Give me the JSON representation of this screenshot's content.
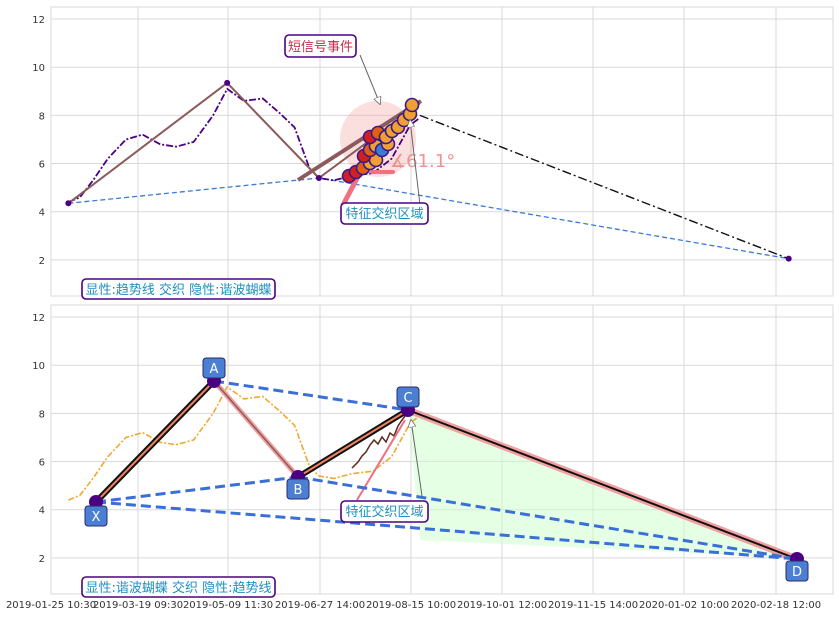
{
  "colors": {
    "grid": "#d9d9d9",
    "purple": "#4b0082",
    "brown": "#8b5a5a",
    "blue_dash": "#3a7bd5",
    "black_dashdot": "#111111",
    "orange": "#f0a830",
    "pink": "#f08080",
    "label_blue": "#4a7fd4",
    "green_fill": "#ccffcc",
    "short_signal_text": "#c0304a",
    "cyan_text": "#1f8fbf"
  },
  "chart_data": [
    {
      "type": "line",
      "panel": "top",
      "ylim": [
        0.5,
        12.5
      ],
      "yticks": [
        2,
        4,
        6,
        8,
        10,
        12
      ],
      "series": [
        {
          "role": "price",
          "style": "purple dash-dot",
          "x": [
            "2019-02-05",
            "2019-02-12",
            "2019-02-20",
            "2019-03-01",
            "2019-03-12",
            "2019-03-22",
            "2019-04-01",
            "2019-04-10",
            "2019-04-20",
            "2019-05-01",
            "2019-05-09",
            "2019-05-18",
            "2019-05-28",
            "2019-06-06",
            "2019-06-14",
            "2019-06-22",
            "2019-06-27",
            "2019-07-05",
            "2019-07-15",
            "2019-07-26",
            "2019-08-05",
            "2019-08-15",
            "2019-08-20"
          ],
          "y": [
            4.4,
            4.6,
            5.3,
            6.2,
            7.0,
            7.2,
            6.8,
            6.7,
            6.9,
            8.0,
            9.1,
            8.6,
            8.7,
            8.1,
            7.5,
            5.8,
            5.4,
            5.3,
            5.5,
            5.6,
            6.2,
            7.6,
            7.9
          ]
        },
        {
          "role": "harmonic-butterfly",
          "style": "brown solid",
          "x": [
            "2019-02-05",
            "2019-05-09",
            "2019-06-27",
            "2019-08-20"
          ],
          "y": [
            4.35,
            9.35,
            5.4,
            8.5
          ]
        },
        {
          "role": "trendline-lower",
          "style": "blue dashed",
          "x": [
            "2019-02-05",
            "2019-06-27",
            "2020-02-25"
          ],
          "y": [
            4.35,
            5.4,
            2.05
          ]
        },
        {
          "role": "projection",
          "style": "black dash-dot",
          "x": [
            "2019-08-20",
            "2020-02-25"
          ],
          "y": [
            8.0,
            2.05
          ]
        }
      ],
      "annotations": {
        "angle": "∡61.1°",
        "short_signal": "短信号事件",
        "feature_zone": "特征交织区域",
        "legend": "显性:趋势线 交织 隐性:谐波蝴蝶"
      }
    },
    {
      "type": "line",
      "panel": "bottom",
      "ylim": [
        0.5,
        12.5
      ],
      "yticks": [
        2,
        4,
        6,
        8,
        10,
        12
      ],
      "xticks": [
        "2019-01-25 10:30",
        "2019-03-19 09:30",
        "2019-05-09 11:30",
        "2019-06-27 14:00",
        "2019-08-15 10:00",
        "2019-10-01 12:00",
        "2019-11-15 14:00",
        "2020-01-02 10:00",
        "2020-02-18 12:00"
      ],
      "points": [
        {
          "label": "X",
          "x": "2019-02-05",
          "y": 4.35
        },
        {
          "label": "A",
          "x": "2019-05-09",
          "y": 9.35
        },
        {
          "label": "B",
          "x": "2019-06-27",
          "y": 5.4
        },
        {
          "label": "C",
          "x": "2019-08-15",
          "y": 8.15
        },
        {
          "label": "D",
          "x": "2020-02-25",
          "y": 1.95
        }
      ],
      "annotations": {
        "feature_zone": "特征交织区域",
        "legend": "显性:谐波蝴蝶 交织 隐性:趋势线"
      }
    }
  ]
}
